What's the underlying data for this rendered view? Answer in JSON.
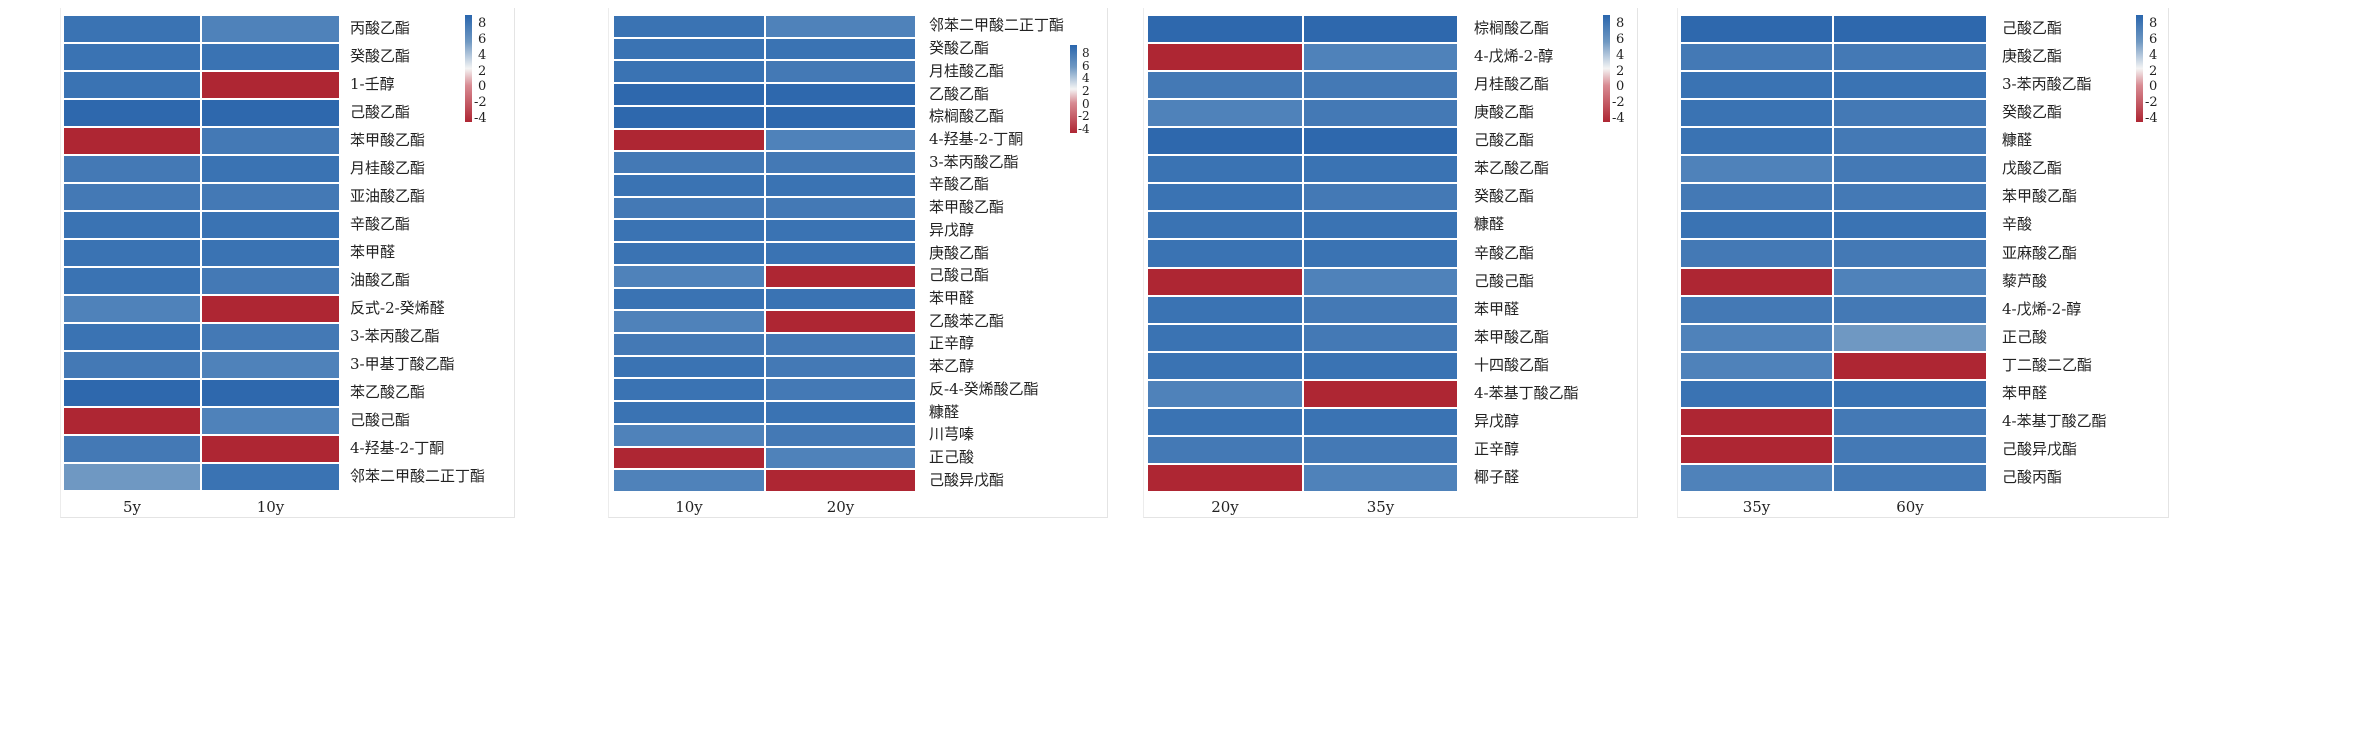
{
  "chart_data": [
    {
      "type": "heatmap",
      "columns": [
        "5y",
        "10y"
      ],
      "rows": [
        "丙酸乙酯",
        "癸酸乙酯",
        "1-壬醇",
        "己酸乙酯",
        "苯甲酸乙酯",
        "月桂酸乙酯",
        "亚油酸乙酯",
        "辛酸乙酯",
        "苯甲醛",
        "油酸乙酯",
        "反式-2-癸烯醛",
        "3-苯丙酸乙酯",
        "3-甲基丁酸乙酯",
        "苯乙酸乙酯",
        "己酸己酯",
        "4-羟基-2-丁酮",
        "邻苯二甲酸二正丁酯"
      ],
      "values": [
        [
          7,
          5.5
        ],
        [
          7,
          7.5
        ],
        [
          7,
          -4
        ],
        [
          8,
          8
        ],
        [
          -4,
          6
        ],
        [
          6,
          7
        ],
        [
          6.5,
          6
        ],
        [
          7.5,
          7.5
        ],
        [
          7,
          7
        ],
        [
          7,
          6.5
        ],
        [
          5.5,
          -4
        ],
        [
          7,
          6.5
        ],
        [
          6,
          5.5
        ],
        [
          8,
          8
        ],
        [
          -4,
          5.5
        ],
        [
          6,
          -4
        ],
        [
          4.5,
          7.5
        ]
      ],
      "legend_ticks": [
        "8",
        "6",
        "4",
        "2",
        "0",
        "-2",
        "-4"
      ],
      "color_range": [
        -4,
        8
      ]
    },
    {
      "type": "heatmap",
      "columns": [
        "10y",
        "20y"
      ],
      "rows": [
        "邻苯二甲酸二正丁酯",
        "癸酸乙酯",
        "月桂酸乙酯",
        "乙酸乙酯",
        "棕榈酸乙酯",
        "4-羟基-2-丁酮",
        "3-苯丙酸乙酯",
        "辛酸乙酯",
        "苯甲酸乙酯",
        "异戊醇",
        "庚酸乙酯",
        "己酸己酯",
        "苯甲醛",
        "乙酸苯乙酯",
        "正辛醇",
        "苯乙醇",
        "反-4-癸烯酸乙酯",
        "糠醛",
        "川芎嗪",
        "正己酸",
        "己酸异戊酯"
      ],
      "values": [
        [
          7.5,
          5
        ],
        [
          7.5,
          7.5
        ],
        [
          7.5,
          6.5
        ],
        [
          8,
          8
        ],
        [
          8,
          8
        ],
        [
          -4,
          5.5
        ],
        [
          6,
          6.5
        ],
        [
          7.5,
          7.5
        ],
        [
          6.5,
          6.5
        ],
        [
          7,
          7
        ],
        [
          7,
          7
        ],
        [
          5.5,
          -4
        ],
        [
          7,
          7
        ],
        [
          5.5,
          -4
        ],
        [
          6.5,
          6.5
        ],
        [
          7,
          6
        ],
        [
          7,
          6.5
        ],
        [
          7.5,
          7
        ],
        [
          5.5,
          6
        ],
        [
          -4,
          5.5
        ],
        [
          5.5,
          -4
        ]
      ],
      "legend_ticks": [
        "8",
        "6",
        "4",
        "2",
        "0",
        "-2",
        "-4"
      ],
      "color_range": [
        -4,
        8
      ]
    },
    {
      "type": "heatmap",
      "columns": [
        "20y",
        "35y"
      ],
      "rows": [
        "棕榈酸乙酯",
        "4-戊烯-2-醇",
        "月桂酸乙酯",
        "庚酸乙酯",
        "己酸乙酯",
        "苯乙酸乙酯",
        "癸酸乙酯",
        "糠醛",
        "辛酸乙酯",
        "己酸己酯",
        "苯甲醛",
        "苯甲酸乙酯",
        "十四酸乙酯",
        "4-苯基丁酸乙酯",
        "异戊醇",
        "正辛醇",
        "椰子醛"
      ],
      "values": [
        [
          8,
          8
        ],
        [
          -4,
          5.5
        ],
        [
          6,
          6.5
        ],
        [
          5.5,
          6
        ],
        [
          8,
          8
        ],
        [
          7.5,
          7.5
        ],
        [
          7,
          6.5
        ],
        [
          7,
          7
        ],
        [
          7,
          7
        ],
        [
          -4,
          5
        ],
        [
          7,
          6.5
        ],
        [
          7,
          6
        ],
        [
          7,
          7
        ],
        [
          5,
          -4
        ],
        [
          7,
          7
        ],
        [
          6.5,
          6
        ],
        [
          -4,
          5
        ]
      ],
      "legend_ticks": [
        "8",
        "6",
        "4",
        "2",
        "0",
        "-2",
        "-4"
      ],
      "color_range": [
        -4,
        8
      ]
    },
    {
      "type": "heatmap",
      "columns": [
        "35y",
        "60y"
      ],
      "rows": [
        "己酸乙酯",
        "庚酸乙酯",
        "3-苯丙酸乙酯",
        "癸酸乙酯",
        "糠醛",
        "戊酸乙酯",
        "苯甲酸乙酯",
        "辛酸",
        "亚麻酸乙酯",
        "藜芦酸",
        "4-戊烯-2-醇",
        "正己酸",
        "丁二酸二乙酯",
        "苯甲醛",
        "4-苯基丁酸乙酯",
        "己酸异戊酯",
        "己酸丙酯"
      ],
      "values": [
        [
          8,
          8
        ],
        [
          6,
          6.5
        ],
        [
          7,
          7.5
        ],
        [
          7,
          6.5
        ],
        [
          7,
          6.5
        ],
        [
          5.5,
          6.5
        ],
        [
          6.5,
          6.5
        ],
        [
          7.5,
          7.5
        ],
        [
          6.5,
          6.5
        ],
        [
          -4,
          5.5
        ],
        [
          6.5,
          6
        ],
        [
          5.5,
          4.5
        ],
        [
          5.5,
          -4
        ],
        [
          7,
          7
        ],
        [
          -4,
          6
        ],
        [
          -4,
          6
        ],
        [
          5.5,
          6.5
        ]
      ],
      "legend_ticks": [
        "8",
        "6",
        "4",
        "2",
        "0",
        "-2",
        "-4"
      ],
      "color_range": [
        -4,
        8
      ]
    }
  ],
  "colors": {
    "high": "#2e68ad",
    "mid": "#4479b5",
    "light": "#6f98c2",
    "low": "#ae2633"
  }
}
